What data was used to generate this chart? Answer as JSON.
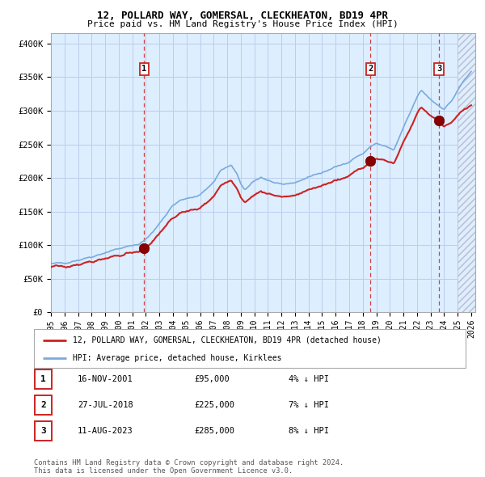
{
  "title1": "12, POLLARD WAY, GOMERSAL, CLECKHEATON, BD19 4PR",
  "title2": "Price paid vs. HM Land Registry's House Price Index (HPI)",
  "ylabel_ticks": [
    "£0",
    "£50K",
    "£100K",
    "£150K",
    "£200K",
    "£250K",
    "£300K",
    "£350K",
    "£400K"
  ],
  "ytick_values": [
    0,
    50000,
    100000,
    150000,
    200000,
    250000,
    300000,
    350000,
    400000
  ],
  "ylim": [
    0,
    415000
  ],
  "xlim_start": 1995.0,
  "xlim_end": 2026.3,
  "hpi_color": "#7aaadd",
  "property_color": "#cc2222",
  "bg_color": "#ddeeff",
  "grid_color": "#bbccee",
  "sale_dates": [
    2001.88,
    2018.57,
    2023.62
  ],
  "sale_prices": [
    95000,
    225000,
    285000
  ],
  "sale_labels": [
    "1",
    "2",
    "3"
  ],
  "legend_property": "12, POLLARD WAY, GOMERSAL, CLECKHEATON, BD19 4PR (detached house)",
  "legend_hpi": "HPI: Average price, detached house, Kirklees",
  "table_rows": [
    {
      "num": "1",
      "date": "16-NOV-2001",
      "price": "£95,000",
      "pct": "4% ↓ HPI"
    },
    {
      "num": "2",
      "date": "27-JUL-2018",
      "price": "£225,000",
      "pct": "7% ↓ HPI"
    },
    {
      "num": "3",
      "date": "11-AUG-2023",
      "price": "£285,000",
      "pct": "8% ↓ HPI"
    }
  ],
  "footer": "Contains HM Land Registry data © Crown copyright and database right 2024.\nThis data is licensed under the Open Government Licence v3.0.",
  "dashed_line_color": "#cc2222",
  "hpi_waypoints_t": [
    1995.0,
    1996.0,
    1997.0,
    1998.0,
    1999.0,
    2000.0,
    2001.0,
    2001.5,
    2002.0,
    2002.5,
    2003.0,
    2003.5,
    2004.0,
    2004.5,
    2005.0,
    2005.5,
    2006.0,
    2006.5,
    2007.0,
    2007.5,
    2008.0,
    2008.3,
    2008.7,
    2009.0,
    2009.3,
    2009.6,
    2010.0,
    2010.5,
    2011.0,
    2011.5,
    2012.0,
    2012.5,
    2013.0,
    2013.5,
    2014.0,
    2014.5,
    2015.0,
    2015.5,
    2016.0,
    2016.5,
    2017.0,
    2017.5,
    2018.0,
    2018.5,
    2019.0,
    2019.5,
    2020.0,
    2020.3,
    2020.7,
    2021.0,
    2021.5,
    2022.0,
    2022.3,
    2022.7,
    2023.0,
    2023.5,
    2024.0,
    2024.5,
    2025.0,
    2025.5,
    2026.0
  ],
  "hpi_waypoints_v": [
    72000,
    74000,
    78000,
    83000,
    89000,
    95000,
    99000,
    102000,
    109000,
    119000,
    133000,
    146000,
    159000,
    166000,
    169000,
    171000,
    176000,
    184000,
    194000,
    211000,
    216000,
    219000,
    206000,
    191000,
    183000,
    187000,
    195000,
    201000,
    197000,
    193000,
    191000,
    189000,
    193000,
    197000,
    202000,
    205000,
    208000,
    212000,
    216000,
    220000,
    225000,
    231000,
    236000,
    245000,
    252000,
    248000,
    244000,
    241000,
    260000,
    274000,
    297000,
    320000,
    330000,
    323000,
    317000,
    309000,
    303000,
    313000,
    330000,
    346000,
    358000
  ]
}
